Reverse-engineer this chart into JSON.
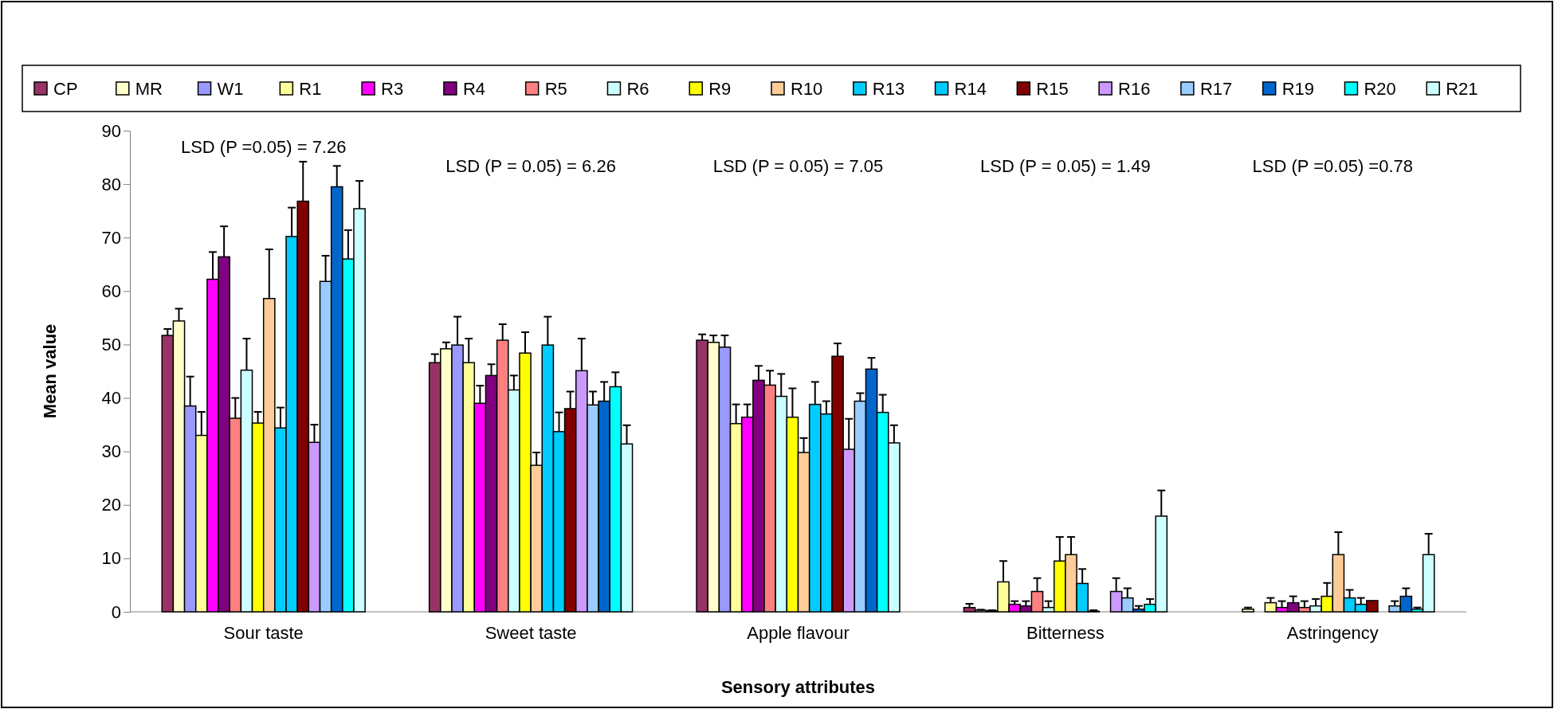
{
  "chart_data": {
    "type": "bar",
    "xlabel": "Sensory attributes",
    "ylabel": "Mean value",
    "categories": [
      "Sour taste",
      "Sweet taste",
      "Apple flavour",
      "Bitterness",
      "Astringency"
    ],
    "ylim": [
      0,
      90
    ],
    "yticks": [
      0,
      10,
      20,
      30,
      40,
      50,
      60,
      70,
      80,
      90
    ],
    "grid": false,
    "legend": "top",
    "annotations": [
      "LSD (P =0.05) = 7.26",
      "LSD (P = 0.05) = 6.26",
      "LSD (P = 0.05) = 7.05",
      "LSD (P = 0.05) = 1.49",
      "LSD (P =0.05) =0.78"
    ],
    "series": [
      {
        "name": "CP",
        "color": "#993366",
        "values": [
          51.7,
          46.6,
          50.8,
          0.8,
          0
        ],
        "errors": [
          [
            51.7,
            52.9
          ],
          [
            46.6,
            48.2
          ],
          [
            50.8,
            51.9
          ],
          [
            0.8,
            1.5
          ],
          null
        ]
      },
      {
        "name": "MR",
        "color": "#ffffcc",
        "values": [
          54.4,
          49.2,
          50.4,
          0.3,
          0.5
        ],
        "errors": [
          [
            54.4,
            56.7
          ],
          [
            49.2,
            50.4
          ],
          [
            50.4,
            51.7
          ],
          [
            0.3,
            0.4
          ],
          [
            0.5,
            0.8
          ]
        ]
      },
      {
        "name": "W1",
        "color": "#9999ff",
        "values": [
          38.5,
          49.9,
          49.5,
          0.2,
          0
        ],
        "errors": [
          [
            38.5,
            44
          ],
          [
            49.9,
            55.2
          ],
          [
            49.5,
            51.7
          ],
          [
            0.2,
            0.3
          ],
          null
        ]
      },
      {
        "name": "R1",
        "color": "#ffff99",
        "values": [
          33,
          46.6,
          35.2,
          5.6,
          1.7
        ],
        "errors": [
          [
            33,
            37.4
          ],
          [
            46.6,
            51.1
          ],
          [
            35.2,
            38.8
          ],
          [
            5.6,
            9.5
          ],
          [
            1.7,
            2.6
          ]
        ]
      },
      {
        "name": "R3",
        "color": "#ff00ff",
        "values": [
          62.2,
          39,
          36.4,
          1.4,
          0.8
        ],
        "errors": [
          [
            62.2,
            67.3
          ],
          [
            39,
            42.3
          ],
          [
            36.4,
            38.8
          ],
          [
            1.4,
            2
          ],
          [
            0.8,
            2
          ]
        ]
      },
      {
        "name": "R4",
        "color": "#800080",
        "values": [
          66.4,
          44.2,
          43.3,
          1.1,
          1.7
        ],
        "errors": [
          [
            66.4,
            72.1
          ],
          [
            44.2,
            46.3
          ],
          [
            43.3,
            46
          ],
          [
            1.1,
            2
          ],
          [
            1.7,
            2.9
          ]
        ]
      },
      {
        "name": "R5",
        "color": "#ff8080",
        "values": [
          36.2,
          50.8,
          42.4,
          3.8,
          0.8
        ],
        "errors": [
          [
            36.2,
            40
          ],
          [
            50.8,
            53.8
          ],
          [
            42.4,
            45.1
          ],
          [
            3.8,
            6.3
          ],
          [
            0.8,
            2
          ]
        ]
      },
      {
        "name": "R6",
        "color": "#ccffff",
        "values": [
          45.2,
          41.5,
          40.3,
          0.8,
          1.1
        ],
        "errors": [
          [
            45.2,
            51.1
          ],
          [
            41.5,
            44.2
          ],
          [
            40.3,
            44.5
          ],
          [
            0.8,
            2
          ],
          [
            1.1,
            2.4
          ]
        ]
      },
      {
        "name": "R9",
        "color": "#ffff00",
        "values": [
          35.3,
          48.4,
          36.4,
          9.5,
          2.9
        ],
        "errors": [
          [
            35.3,
            37.4
          ],
          [
            48.4,
            52.3
          ],
          [
            36.4,
            41.8
          ],
          [
            9.5,
            14
          ],
          [
            2.9,
            5.4
          ]
        ]
      },
      {
        "name": "R10",
        "color": "#ffcc99",
        "values": [
          58.6,
          27.4,
          29.8,
          10.7,
          10.7
        ],
        "errors": [
          [
            58.6,
            67.8
          ],
          [
            27.4,
            29.8
          ],
          [
            29.8,
            32.5
          ],
          [
            10.7,
            14
          ],
          [
            10.7,
            14.9
          ]
        ]
      },
      {
        "name": "R13",
        "color": "#00ccff",
        "values": [
          34.4,
          49.9,
          38.8,
          5.3,
          2.6
        ],
        "errors": [
          [
            34.4,
            38.2
          ],
          [
            49.9,
            55.2
          ],
          [
            38.8,
            43
          ],
          [
            5.3,
            8
          ],
          [
            2.6,
            4.1
          ]
        ]
      },
      {
        "name": "R14",
        "color": "#00ccff",
        "values": [
          70.2,
          33.7,
          37,
          0.1,
          1.4
        ],
        "errors": [
          [
            70.2,
            75.6
          ],
          [
            33.7,
            37.3
          ],
          [
            37,
            39.4
          ],
          [
            0.1,
            0.3
          ],
          [
            1.4,
            2.6
          ]
        ]
      },
      {
        "name": "R15",
        "color": "#800000",
        "values": [
          76.8,
          38,
          47.8,
          0,
          2.1
        ],
        "errors": [
          [
            76.8,
            84.2
          ],
          [
            38,
            41.2
          ],
          [
            47.8,
            50.2
          ],
          null,
          null
        ]
      },
      {
        "name": "R16",
        "color": "#cc99ff",
        "values": [
          31.7,
          45.1,
          30.4,
          3.8,
          0
        ],
        "errors": [
          [
            31.7,
            35
          ],
          [
            45.1,
            51.1
          ],
          [
            30.4,
            36.1
          ],
          [
            3.8,
            6.3
          ],
          null
        ]
      },
      {
        "name": "R17",
        "color": "#99ccff",
        "values": [
          61.8,
          38.7,
          39.4,
          2.6,
          1.1
        ],
        "errors": [
          [
            61.8,
            66.6
          ],
          [
            38.7,
            41.2
          ],
          [
            39.4,
            40.9
          ],
          [
            2.6,
            4.4
          ],
          [
            1.1,
            2
          ]
        ]
      },
      {
        "name": "R19",
        "color": "#0066cc",
        "values": [
          79.5,
          39.4,
          45.4,
          0.5,
          2.9
        ],
        "errors": [
          [
            79.5,
            83.4
          ],
          [
            39.4,
            43
          ],
          [
            45.4,
            47.5
          ],
          [
            0.5,
            1.1
          ],
          [
            2.9,
            4.4
          ]
        ]
      },
      {
        "name": "R20",
        "color": "#00ffff",
        "values": [
          66,
          42.1,
          37.3,
          1.4,
          0.5
        ],
        "errors": [
          [
            66,
            71.4
          ],
          [
            42.1,
            44.8
          ],
          [
            37.3,
            40.6
          ],
          [
            1.4,
            2.4
          ],
          [
            0.5,
            0.8
          ]
        ]
      },
      {
        "name": "R21",
        "color": "#ccffff",
        "values": [
          75.4,
          31.4,
          31.6,
          17.9,
          10.7
        ],
        "errors": [
          [
            75.4,
            80.6
          ],
          [
            31.4,
            34.9
          ],
          [
            31.6,
            34.9
          ],
          [
            17.9,
            22.7
          ],
          [
            10.7,
            14.6
          ]
        ]
      }
    ]
  }
}
